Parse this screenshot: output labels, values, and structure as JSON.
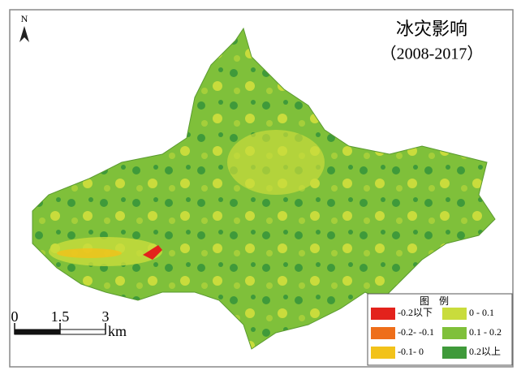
{
  "map": {
    "title": "冰灾影响",
    "subtitle": "（2008-2017）",
    "north": "N",
    "legend": {
      "title": "图　例",
      "items": [
        {
          "label": "-0.2以下",
          "color": "#e3221c"
        },
        {
          "label": "-0.2- -0.1",
          "color": "#ee6e1a"
        },
        {
          "label": "-0.1- 0",
          "color": "#f2c21a"
        },
        {
          "label": "0 - 0.1",
          "color": "#c9dc3c"
        },
        {
          "label": "0.1 - 0.2",
          "color": "#7fc03a"
        },
        {
          "label": "0.2以上",
          "color": "#3f9a3a"
        }
      ]
    },
    "scale": {
      "ticks": [
        0,
        1.5,
        3
      ],
      "unit": "km"
    }
  }
}
